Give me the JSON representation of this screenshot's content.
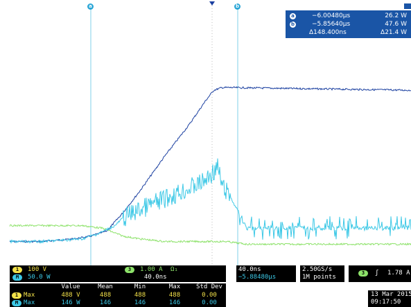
{
  "scope": {
    "cursor_a_label": "a",
    "cursor_b_label": "b",
    "readout": {
      "a": {
        "time": "−6.00480µs",
        "value": "26.2 W"
      },
      "b": {
        "time": "−5.85640µs",
        "value": "47.6 W"
      },
      "delta": {
        "time": "Δ148.400ns",
        "value": "Δ21.4 W"
      }
    },
    "traces": [
      {
        "name": "channel-1-voltage",
        "color": "#1a3fa0",
        "t": [
          0.0,
          0.1,
          0.18,
          0.22,
          0.26,
          0.3,
          0.34,
          0.4,
          0.46,
          0.5,
          0.52,
          0.54,
          0.56,
          1.0
        ],
        "level": [
          0.91,
          0.91,
          0.9,
          0.89,
          0.87,
          0.8,
          0.72,
          0.59,
          0.47,
          0.38,
          0.34,
          0.33,
          0.33,
          0.34
        ]
      },
      {
        "name": "channel-3-current",
        "color": "#8de26a",
        "t": [
          0.0,
          0.1,
          0.2,
          0.25,
          0.3,
          0.34,
          0.4,
          0.55,
          0.6,
          0.7,
          1.0
        ],
        "level": [
          0.85,
          0.85,
          0.85,
          0.86,
          0.89,
          0.9,
          0.91,
          0.91,
          0.92,
          0.92,
          0.92
        ]
      },
      {
        "name": "math-power",
        "color": "#3cc8e6",
        "t": [
          0.0,
          0.1,
          0.2,
          0.24,
          0.28,
          0.3,
          0.34,
          0.4,
          0.46,
          0.5,
          0.53,
          0.54,
          0.56,
          0.58,
          0.6,
          1.0
        ],
        "level": [
          0.91,
          0.91,
          0.9,
          0.88,
          0.85,
          0.82,
          0.79,
          0.75,
          0.71,
          0.68,
          0.63,
          0.7,
          0.74,
          0.8,
          0.86,
          0.86
        ]
      }
    ],
    "ch1": {
      "num": "1",
      "scale": "100 V"
    },
    "ch3": {
      "num": "3",
      "scale": "1.00 A",
      "coupling": "Ω₁"
    },
    "math": {
      "num": "M",
      "scale": "50.0 W",
      "timescale": "40.0ns"
    },
    "timebase": {
      "scale": "40.0ns",
      "position": "−5.88480µs"
    },
    "acq": {
      "rate": "2.50GS/s",
      "points": "1M points"
    },
    "trigger": {
      "source": "3",
      "slope": "ʃ",
      "level": "1.78 A"
    },
    "datetime": {
      "date": "13 Mar 2015",
      "time": "09:17:50"
    },
    "measurements": {
      "headers": [
        "Value",
        "Mean",
        "Min",
        "Max",
        "Std Dev"
      ],
      "rows": [
        {
          "src": "1",
          "name": "Max",
          "value": "488 V",
          "mean": "488",
          "min": "488",
          "max": "488",
          "std": "0.00"
        },
        {
          "src": "M",
          "name": "Max",
          "value": "146 W",
          "mean": "146",
          "min": "146",
          "max": "146",
          "std": "0.00"
        }
      ]
    }
  }
}
